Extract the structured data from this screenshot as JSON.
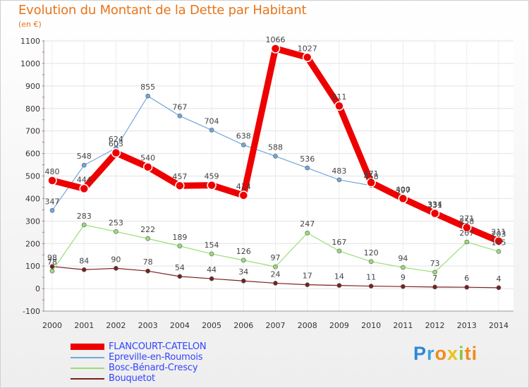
{
  "title": "Evolution du Montant de la Dette par Habitant",
  "subtitle": "(en €)",
  "brand": "Proxiti",
  "brand_letters": [
    "P",
    "r",
    "o",
    "x",
    "i",
    "ti"
  ],
  "chart_data": {
    "type": "line",
    "title": "Evolution du Montant de la Dette par Habitant",
    "ylabel": "(en €)",
    "x": [
      "2000",
      "2001",
      "2002",
      "2003",
      "2004",
      "2005",
      "2006",
      "2007",
      "2008",
      "2009",
      "2010",
      "2011",
      "2012",
      "2013",
      "2014"
    ],
    "ylim": [
      -100,
      1100
    ],
    "yticks": [
      -100,
      0,
      100,
      200,
      300,
      400,
      500,
      600,
      700,
      800,
      900,
      1000,
      1100
    ],
    "series": [
      {
        "name": "FLANCOURT-CATELON",
        "color": "#ee0000",
        "values": [
          480,
          444,
          603,
          540,
          457,
          459,
          414,
          1066,
          1027,
          811,
          471,
          400,
          334,
          271,
          211
        ],
        "labels": [
          "480",
          "444",
          "603",
          "540",
          "457",
          "459",
          "414",
          "1066",
          "1027",
          "811",
          "471",
          "400",
          "334",
          "271",
          "211"
        ]
      },
      {
        "name": "Epreville-en-Roumois",
        "color": "#6fa8dc",
        "values": [
          347,
          548,
          624,
          855,
          767,
          704,
          638,
          588,
          536,
          483,
          458,
          397,
          331,
          258,
          203
        ],
        "labels": [
          "347",
          "548",
          "624",
          "855",
          "767",
          "704",
          "638",
          "588",
          "536",
          "483",
          "458",
          "397",
          "331",
          "258",
          "203"
        ]
      },
      {
        "name": "Bosc-Bénard-Crescy",
        "color": "#99dd77",
        "values": [
          78,
          283,
          253,
          222,
          189,
          154,
          126,
          97,
          247,
          167,
          120,
          94,
          73,
          207,
          165
        ],
        "labels": [
          "78",
          "283",
          "253",
          "222",
          "189",
          "154",
          "126",
          "97",
          "247",
          "167",
          "120",
          "94",
          "73",
          "207",
          "165"
        ]
      },
      {
        "name": "Bouquetot",
        "color": "#7a1f1f",
        "values": [
          98,
          84,
          90,
          78,
          54,
          44,
          34,
          24,
          17,
          14,
          11,
          9,
          7,
          6,
          4
        ],
        "labels": [
          "98",
          "84",
          "90",
          "78",
          "54",
          "44",
          "34",
          "24",
          "17",
          "14",
          "11",
          "9",
          "7",
          "6",
          "4"
        ]
      }
    ],
    "legend_position": "bottom-left"
  }
}
